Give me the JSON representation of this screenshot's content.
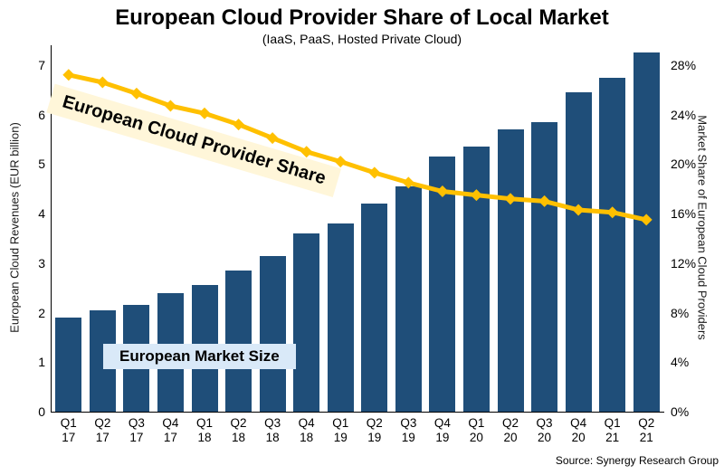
{
  "title": "European Cloud Provider Share of Local Market",
  "subtitle": "(IaaS, PaaS, Hosted Private Cloud)",
  "left_axis": {
    "label": "European Cloud Revenues (EUR billion)",
    "ticks": [
      "0",
      "1",
      "2",
      "3",
      "4",
      "5",
      "6",
      "7"
    ]
  },
  "right_axis": {
    "label": "Market Share of European Cloud Providers",
    "ticks": [
      "0%",
      "4%",
      "8%",
      "12%",
      "16%",
      "20%",
      "24%",
      "28%"
    ]
  },
  "annotations": {
    "line_label": "European Cloud Provider Share",
    "bar_label": "European Market Size",
    "source": "Source: Synergy Research Group"
  },
  "colors": {
    "bar": "#1F4E79",
    "line": "#FFC000",
    "line_label_bg": "#FFF6D9",
    "bar_label_bg": "#D9E9F8"
  },
  "chart_data": {
    "type": "bar",
    "title": "European Cloud Provider Share of Local Market",
    "subtitle": "(IaaS, PaaS, Hosted Private Cloud)",
    "categories": [
      "Q1 17",
      "Q2 17",
      "Q3 17",
      "Q4 17",
      "Q1 18",
      "Q2 18",
      "Q3 18",
      "Q4 18",
      "Q1 19",
      "Q2 19",
      "Q3 19",
      "Q4 19",
      "Q1 20",
      "Q2 20",
      "Q3 20",
      "Q4 20",
      "Q1 21",
      "Q2 21"
    ],
    "series": [
      {
        "name": "European Market Size",
        "type": "bar",
        "axis": "left",
        "ylabel": "European Cloud Revenues (EUR billion)",
        "ylim": [
          0,
          7
        ],
        "values": [
          1.9,
          2.05,
          2.15,
          2.4,
          2.55,
          2.85,
          3.15,
          3.6,
          3.8,
          4.2,
          4.55,
          5.15,
          5.35,
          5.7,
          5.85,
          6.45,
          6.75,
          7.25
        ]
      },
      {
        "name": "European Cloud Provider Share",
        "type": "line",
        "axis": "right",
        "ylabel": "Market Share of European Cloud Providers",
        "ylim": [
          0,
          28
        ],
        "values": [
          27.2,
          26.6,
          25.7,
          24.7,
          24.1,
          23.2,
          22.1,
          21.0,
          20.2,
          19.3,
          18.5,
          17.8,
          17.5,
          17.2,
          17.0,
          16.3,
          16.1,
          15.5
        ]
      }
    ],
    "legend": "none",
    "grid": false,
    "source": "Source: Synergy Research Group"
  }
}
